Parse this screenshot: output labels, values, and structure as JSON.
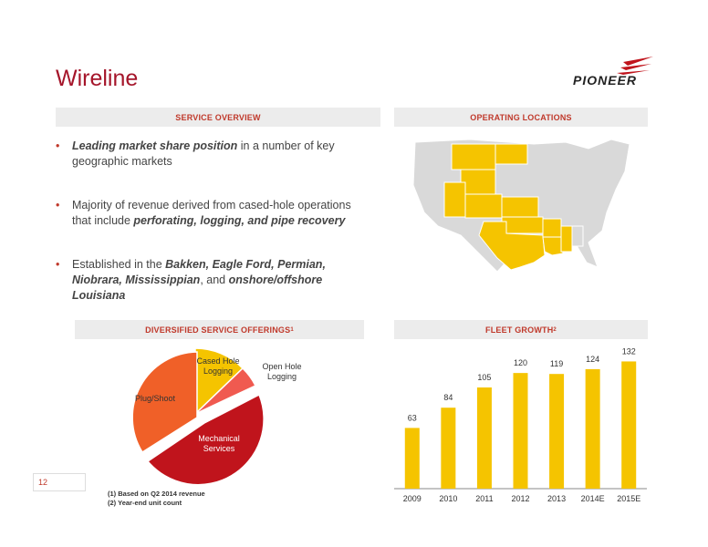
{
  "title": "Wireline",
  "logo_text": "PIONEER",
  "headers": {
    "service_overview": "SERVICE OVERVIEW",
    "operating_locations": "OPERATING LOCATIONS",
    "diversified": "DIVERSIFIED SERVICE OFFERINGS",
    "diversified_sup": "1",
    "fleet": "FLEET GROWTH",
    "fleet_sup": "2"
  },
  "bullets": [
    {
      "pre": "",
      "bold": "Leading market share position",
      "post": " in a number of key geographic markets"
    },
    {
      "pre": "Majority of revenue derived from cased-hole operations that include ",
      "bold": "perforating, logging, and pipe recovery",
      "post": ""
    },
    {
      "pre": "Established in the ",
      "bold": "Bakken, Eagle Ford, Permian, Niobrara, Mississippian",
      "post": ", and ",
      "bold2": "onshore/offshore Louisiana"
    }
  ],
  "pie": {
    "labels": {
      "cased": "Cased Hole Logging",
      "open": "Open Hole Logging",
      "mechanical": "Mechanical Services",
      "plug": "Plug/Shoot"
    }
  },
  "page_number": "12",
  "footnotes": [
    "(1)   Based on Q2 2014 revenue",
    "(2)   Year-end unit count"
  ],
  "colors": {
    "accent": "#a5152a",
    "bar": "#f5c400",
    "pie_cased": "#f5c400",
    "pie_open": "#f05a50",
    "pie_mech": "#c0141c",
    "pie_plug": "#f06028",
    "map_highlight": "#f5c400",
    "map_base": "#d9d9d9"
  },
  "chart_data": {
    "type": "bar",
    "categories": [
      "2009",
      "2010",
      "2011",
      "2012",
      "2013",
      "2014E",
      "2015E"
    ],
    "values": [
      63,
      84,
      105,
      120,
      119,
      124,
      132
    ],
    "ylim": [
      0,
      140
    ],
    "grid": false
  }
}
